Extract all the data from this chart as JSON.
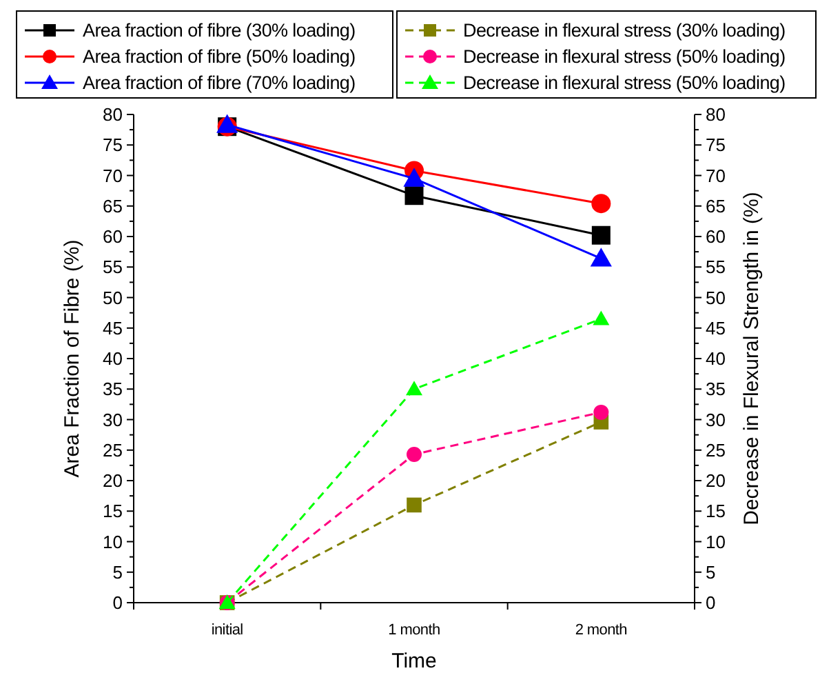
{
  "chart_data": {
    "type": "line",
    "categories": [
      "initial",
      "1 month",
      "2 month"
    ],
    "xlabel": "Time",
    "ylabel": "Area Fraction of Fibre (%)",
    "y2label": "Decrease in Flexural Strength in (%)",
    "ylim": [
      0,
      80
    ],
    "yticks": [
      0,
      5,
      10,
      15,
      20,
      25,
      30,
      35,
      40,
      45,
      50,
      55,
      60,
      65,
      70,
      75,
      80
    ],
    "y2lim": [
      0,
      80
    ],
    "y2ticks": [
      0,
      5,
      10,
      15,
      20,
      25,
      30,
      35,
      40,
      45,
      50,
      55,
      60,
      65,
      70,
      75,
      80
    ],
    "grid": false,
    "legend": "top",
    "series": [
      {
        "name": "Area fraction of fibre (30% loading)",
        "color": "#000000",
        "values": [
          78,
          66.7,
          60.2
        ],
        "marker": "square",
        "line_style": "solid"
      },
      {
        "name": "Area fraction of fibre (50% loading)",
        "color": "#ff0000",
        "values": [
          78,
          70.8,
          65.4
        ],
        "marker": "circle",
        "line_style": "solid"
      },
      {
        "name": "Area fraction of fibre (70% loading)",
        "color": "#0000ff",
        "values": [
          78.3,
          69.5,
          56.4
        ],
        "marker": "triangle",
        "line_style": "solid"
      },
      {
        "name": "Decrease in flexural stress (30% loading)",
        "color": "#808000",
        "values": [
          0,
          16,
          29.6
        ],
        "marker": "square",
        "line_style": "dashed",
        "axis": "y2"
      },
      {
        "name": "Decrease in flexural stress (50% loading)",
        "color": "#ff0080",
        "values": [
          0,
          24.3,
          31.2
        ],
        "marker": "circle",
        "line_style": "dashed",
        "axis": "y2"
      },
      {
        "name": "Decrease in flexural stress (50% loading)",
        "color": "#00ff00",
        "values": [
          0,
          35,
          46.5
        ],
        "marker": "triangle",
        "line_style": "dashed",
        "axis": "y2"
      }
    ]
  }
}
